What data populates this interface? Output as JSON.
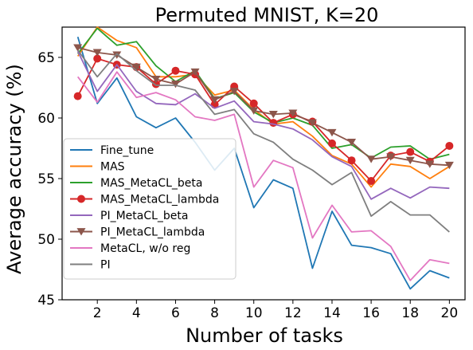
{
  "chart_data": {
    "type": "line",
    "title": "Permuted MNIST, K=20",
    "xlabel": "Number of tasks",
    "ylabel": "Average accuracy (%)",
    "xlim": [
      0.2,
      20.8
    ],
    "ylim": [
      45,
      67.5
    ],
    "xticks": [
      2,
      4,
      6,
      8,
      10,
      12,
      14,
      16,
      18,
      20
    ],
    "yticks": [
      45,
      50,
      55,
      60,
      65
    ],
    "grid": false,
    "legend_position": "lower-left",
    "x": [
      1,
      2,
      3,
      4,
      5,
      6,
      7,
      8,
      9,
      10,
      11,
      12,
      13,
      14,
      15,
      16,
      17,
      18,
      19,
      20
    ],
    "series": [
      {
        "name": "Fine_tune",
        "color": "#1f77b4",
        "marker": "none",
        "values": [
          66.7,
          61.2,
          63.3,
          60.1,
          59.2,
          60.0,
          58.0,
          55.7,
          57.5,
          52.6,
          54.9,
          54.2,
          47.6,
          52.3,
          49.5,
          49.3,
          48.8,
          45.9,
          47.4,
          46.8
        ]
      },
      {
        "name": "MAS",
        "color": "#ff7f0e",
        "marker": "none",
        "values": [
          65.1,
          67.5,
          66.4,
          65.8,
          63.4,
          63.4,
          63.6,
          61.9,
          62.3,
          60.7,
          59.5,
          59.7,
          58.5,
          56.9,
          56.2,
          54.3,
          56.2,
          56.0,
          55.0,
          56.0
        ]
      },
      {
        "name": "MAS_MetaCL_beta",
        "color": "#2ca02c",
        "marker": "none",
        "values": [
          65.3,
          67.4,
          66.0,
          66.3,
          64.3,
          63.0,
          63.9,
          61.6,
          62.1,
          60.5,
          59.6,
          60.0,
          59.4,
          57.5,
          57.8,
          56.7,
          57.6,
          57.7,
          56.6,
          57.0
        ]
      },
      {
        "name": "MAS_MetaCL_lambda",
        "color": "#d62728",
        "marker": "circle",
        "values": [
          61.8,
          64.9,
          64.4,
          64.2,
          62.8,
          63.9,
          63.6,
          61.1,
          62.6,
          61.2,
          59.6,
          60.3,
          59.7,
          57.9,
          56.5,
          54.8,
          56.9,
          57.2,
          56.4,
          57.7
        ]
      },
      {
        "name": "PI_MetaCL_beta",
        "color": "#9467bd",
        "marker": "none",
        "values": [
          65.5,
          62.2,
          64.4,
          62.2,
          61.2,
          61.1,
          62.0,
          60.8,
          61.4,
          59.7,
          59.5,
          59.1,
          58.2,
          56.8,
          56.0,
          53.3,
          54.2,
          53.4,
          54.3,
          54.2
        ]
      },
      {
        "name": "PI_MetaCL_lambda",
        "color": "#8c564b",
        "marker": "triangle-down",
        "values": [
          65.8,
          65.4,
          65.2,
          64.2,
          63.2,
          62.8,
          63.8,
          61.5,
          62.2,
          60.6,
          60.3,
          60.4,
          59.6,
          58.8,
          58.0,
          56.6,
          56.8,
          56.5,
          56.2,
          56.1
        ]
      },
      {
        "name": "MetaCL, w/o reg",
        "color": "#e377c2",
        "marker": "none",
        "values": [
          63.4,
          61.3,
          63.8,
          61.7,
          62.1,
          61.5,
          60.1,
          59.8,
          60.3,
          54.3,
          56.5,
          55.9,
          50.1,
          52.8,
          50.6,
          50.7,
          49.4,
          46.6,
          48.3,
          48.0
        ]
      },
      {
        "name": "PI",
        "color": "#7f7f7f",
        "marker": "none",
        "values": [
          65.6,
          63.4,
          65.3,
          63.9,
          62.7,
          62.7,
          62.3,
          60.3,
          60.7,
          58.7,
          58.0,
          56.6,
          55.7,
          54.5,
          55.5,
          51.9,
          53.1,
          52.0,
          52.0,
          50.6
        ]
      }
    ]
  }
}
